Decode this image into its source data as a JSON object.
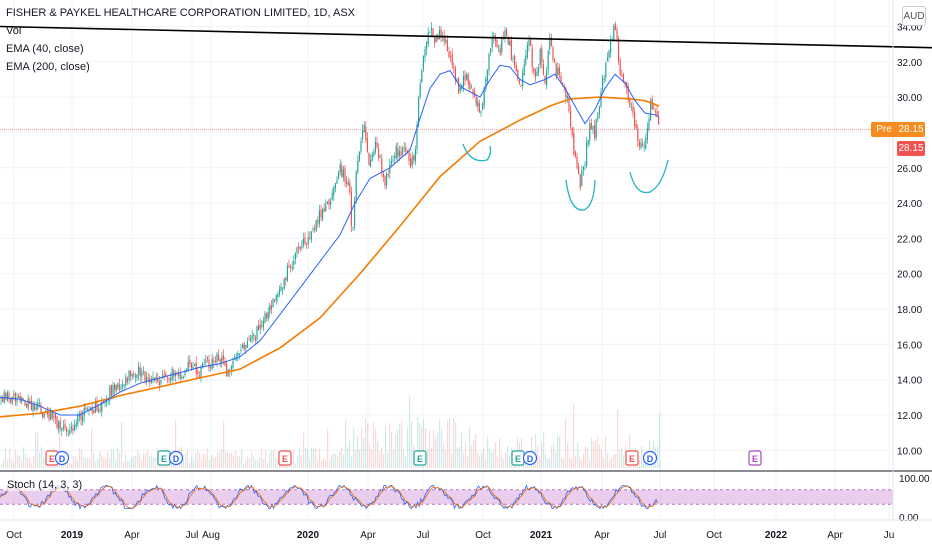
{
  "legend": {
    "title": "FISHER & PAYKEL HEALTHCARE CORPORATION LIMITED, 1D, ASX",
    "vol": "Vol",
    "ema40": "EMA (40, close)",
    "ema200": "EMA (200, close)"
  },
  "currency": "AUD",
  "price_badges": {
    "pre_label": "Pre",
    "pre_value": "28.15",
    "last_value": "28.15"
  },
  "oscillator": {
    "label": "Stoch (14, 3, 3)",
    "axis_ticks": [
      "100.00",
      "0.00"
    ]
  },
  "colors": {
    "up": "#26a69a",
    "down": "#ef5350",
    "ema40": "#2962ff",
    "ema200": "#f57c00",
    "trendline": "#000000",
    "pattern": "#22b5c6",
    "stoch_band": "#e1bee7",
    "stoch_k": "#2962ff",
    "stoch_d": "#ef6c00",
    "pre": "#f68b1f"
  },
  "events": [
    "E",
    "D",
    "E",
    "D",
    "E",
    "E",
    "D",
    "E",
    "D",
    "E"
  ],
  "chart_data": {
    "type": "candlestick",
    "title": "FISHER & PAYKEL HEALTHCARE CORPORATION LIMITED, 1D, ASX",
    "x_ticks": [
      "Oct",
      "2019",
      "Apr",
      "Jul",
      "Aug",
      "2020",
      "Apr",
      "Jul",
      "Oct",
      "2021",
      "Apr",
      "Jul",
      "Oct",
      "2022",
      "Apr",
      "Ju"
    ],
    "y_ticks": [
      "10.00",
      "12.00",
      "14.00",
      "16.00",
      "18.00",
      "20.00",
      "22.00",
      "24.00",
      "26.00",
      "28.00",
      "30.00",
      "32.00",
      "34.00"
    ],
    "ylim": [
      9,
      35.5
    ],
    "series": [
      {
        "name": "EMA (40, close)"
      },
      {
        "name": "EMA (200, close)"
      }
    ],
    "close_path": [
      [
        0,
        13.0
      ],
      [
        12,
        13.1
      ],
      [
        22,
        12.7
      ],
      [
        35,
        12.5
      ],
      [
        50,
        12.0
      ],
      [
        60,
        11.3
      ],
      [
        70,
        11.0
      ],
      [
        80,
        11.8
      ],
      [
        90,
        12.5
      ],
      [
        100,
        12.3
      ],
      [
        110,
        13.3
      ],
      [
        120,
        13.7
      ],
      [
        130,
        14.2
      ],
      [
        140,
        14.5
      ],
      [
        150,
        13.8
      ],
      [
        160,
        13.9
      ],
      [
        170,
        14.3
      ],
      [
        180,
        14.3
      ],
      [
        190,
        14.9
      ],
      [
        200,
        14.5
      ],
      [
        210,
        15.0
      ],
      [
        220,
        15.2
      ],
      [
        230,
        14.3
      ],
      [
        240,
        15.8
      ],
      [
        250,
        16.0
      ],
      [
        260,
        17.0
      ],
      [
        270,
        18.0
      ],
      [
        280,
        19.0
      ],
      [
        290,
        20.5
      ],
      [
        300,
        21.5
      ],
      [
        310,
        22.0
      ],
      [
        320,
        23.5
      ],
      [
        330,
        24.0
      ],
      [
        340,
        26.0
      ],
      [
        345,
        25.5
      ],
      [
        350,
        24.5
      ],
      [
        352,
        21.5
      ],
      [
        356,
        25.8
      ],
      [
        360,
        27.5
      ],
      [
        365,
        28.3
      ],
      [
        370,
        26.0
      ],
      [
        375,
        27.5
      ],
      [
        380,
        26.5
      ],
      [
        385,
        25.3
      ],
      [
        390,
        26.0
      ],
      [
        395,
        27.0
      ],
      [
        400,
        26.8
      ],
      [
        405,
        27.0
      ],
      [
        410,
        26.2
      ],
      [
        415,
        26.5
      ],
      [
        420,
        31.0
      ],
      [
        425,
        33.0
      ],
      [
        430,
        34.0
      ],
      [
        435,
        33.0
      ],
      [
        440,
        33.5
      ],
      [
        445,
        33.0
      ],
      [
        450,
        32.5
      ],
      [
        455,
        31.0
      ],
      [
        460,
        30.2
      ],
      [
        465,
        31.2
      ],
      [
        470,
        30.5
      ],
      [
        475,
        29.8
      ],
      [
        480,
        29.2
      ],
      [
        485,
        30.5
      ],
      [
        490,
        33.0
      ],
      [
        495,
        33.5
      ],
      [
        500,
        32.5
      ],
      [
        505,
        34.0
      ],
      [
        510,
        32.8
      ],
      [
        515,
        31.5
      ],
      [
        520,
        30.5
      ],
      [
        525,
        32.5
      ],
      [
        530,
        33.0
      ],
      [
        535,
        30.8
      ],
      [
        540,
        32.5
      ],
      [
        545,
        31.0
      ],
      [
        550,
        33.2
      ],
      [
        555,
        31.5
      ],
      [
        560,
        31.2
      ],
      [
        565,
        30.5
      ],
      [
        570,
        29.0
      ],
      [
        575,
        26.5
      ],
      [
        580,
        25.0
      ],
      [
        585,
        26.5
      ],
      [
        590,
        28.5
      ],
      [
        595,
        28.0
      ],
      [
        600,
        30.0
      ],
      [
        605,
        31.5
      ],
      [
        610,
        33.0
      ],
      [
        615,
        34.0
      ],
      [
        620,
        31.5
      ],
      [
        625,
        30.5
      ],
      [
        630,
        29.5
      ],
      [
        635,
        28.5
      ],
      [
        640,
        27.0
      ],
      [
        645,
        27.5
      ],
      [
        650,
        29.5
      ],
      [
        655,
        29.3
      ],
      [
        659,
        28.2
      ]
    ],
    "ema40_path": [
      [
        0,
        13.0
      ],
      [
        20,
        12.9
      ],
      [
        40,
        12.5
      ],
      [
        60,
        12.0
      ],
      [
        80,
        12.0
      ],
      [
        100,
        12.6
      ],
      [
        120,
        13.3
      ],
      [
        140,
        13.8
      ],
      [
        160,
        14.1
      ],
      [
        180,
        14.4
      ],
      [
        200,
        14.7
      ],
      [
        220,
        14.9
      ],
      [
        240,
        15.3
      ],
      [
        260,
        16.2
      ],
      [
        280,
        17.7
      ],
      [
        300,
        19.2
      ],
      [
        320,
        20.7
      ],
      [
        340,
        22.2
      ],
      [
        355,
        24.0
      ],
      [
        370,
        25.4
      ],
      [
        390,
        26.0
      ],
      [
        410,
        27.0
      ],
      [
        420,
        28.8
      ],
      [
        430,
        30.5
      ],
      [
        440,
        31.3
      ],
      [
        450,
        31.5
      ],
      [
        460,
        30.6
      ],
      [
        470,
        30.3
      ],
      [
        480,
        30.0
      ],
      [
        490,
        31.0
      ],
      [
        500,
        31.8
      ],
      [
        510,
        31.7
      ],
      [
        520,
        31.0
      ],
      [
        530,
        30.7
      ],
      [
        545,
        31.0
      ],
      [
        555,
        31.3
      ],
      [
        565,
        30.5
      ],
      [
        575,
        29.5
      ],
      [
        585,
        28.5
      ],
      [
        595,
        29.3
      ],
      [
        605,
        30.5
      ],
      [
        615,
        31.3
      ],
      [
        625,
        30.8
      ],
      [
        635,
        29.8
      ],
      [
        645,
        29.1
      ],
      [
        655,
        29.0
      ],
      [
        659,
        28.9
      ]
    ],
    "ema200_path": [
      [
        0,
        11.9
      ],
      [
        40,
        12.1
      ],
      [
        80,
        12.5
      ],
      [
        120,
        13.1
      ],
      [
        160,
        13.6
      ],
      [
        200,
        14.1
      ],
      [
        240,
        14.6
      ],
      [
        280,
        15.8
      ],
      [
        320,
        17.5
      ],
      [
        360,
        20.0
      ],
      [
        400,
        22.7
      ],
      [
        440,
        25.5
      ],
      [
        480,
        27.5
      ],
      [
        520,
        28.7
      ],
      [
        550,
        29.5
      ],
      [
        570,
        29.9
      ],
      [
        600,
        30.0
      ],
      [
        630,
        29.9
      ],
      [
        645,
        29.8
      ],
      [
        659,
        29.5
      ]
    ],
    "trendline": [
      [
        0,
        34.0
      ],
      [
        932,
        32.8
      ]
    ],
    "annotations": [
      "cup-shaped arcs marking double bottom / head-and-shoulders pattern"
    ],
    "volume_panel": true,
    "stochastic": {
      "name": "Stoch (14, 3, 3)",
      "range": [
        0,
        100
      ]
    }
  }
}
